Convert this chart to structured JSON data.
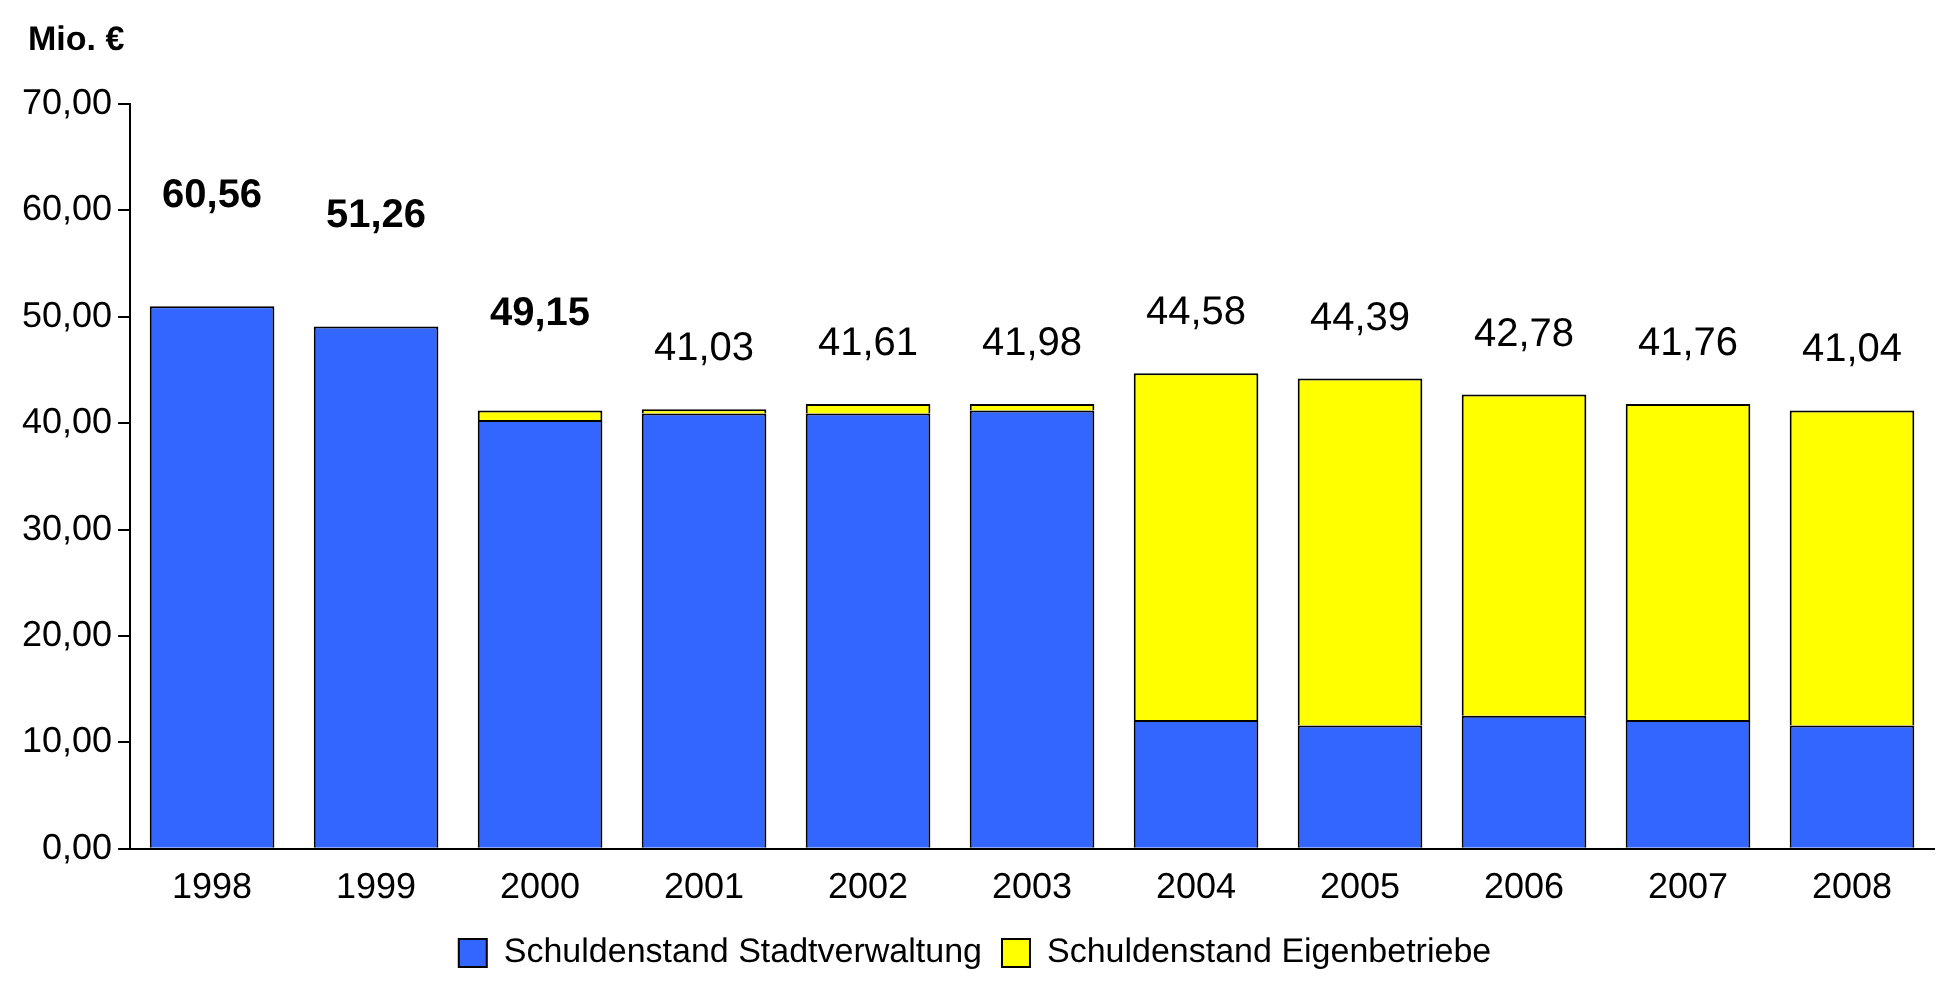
{
  "chart_data": {
    "type": "bar",
    "ylabel": "Mio. €",
    "categories": [
      "1998",
      "1999",
      "2000",
      "2001",
      "2002",
      "2003",
      "2004",
      "2005",
      "2006",
      "2007",
      "2008"
    ],
    "stacked": true,
    "series": [
      {
        "name": "Schuldenstand Stadtverwaltung",
        "color": "#3366ff",
        "values": [
          51.0,
          49.1,
          40.3,
          40.9,
          40.9,
          41.2,
          12.1,
          11.6,
          12.5,
          12.1,
          11.6
        ]
      },
      {
        "name": "Schuldenstand Eigenbetriebe",
        "color": "#ffff00",
        "values": [
          null,
          null,
          0.9,
          0.4,
          0.9,
          0.6,
          32.6,
          32.6,
          30.2,
          29.7,
          29.6
        ]
      }
    ],
    "annotations": [
      "60,56",
      "51,26",
      "49,15",
      "41,03",
      "41,61",
      "41,98",
      "44,58",
      "44,39",
      "42,78",
      "41,76",
      "41,04"
    ],
    "ylim": [
      0,
      70
    ],
    "yticks": [
      {
        "value": 0,
        "label": "0,00"
      },
      {
        "value": 10,
        "label": "10,00"
      },
      {
        "value": 20,
        "label": "20,00"
      },
      {
        "value": 30,
        "label": "30,00"
      },
      {
        "value": 40,
        "label": "40,00"
      },
      {
        "value": 50,
        "label": "50,00"
      },
      {
        "value": 60,
        "label": "60,00"
      },
      {
        "value": 70,
        "label": "70,00"
      }
    ],
    "grid": false,
    "legend": "bottom"
  }
}
